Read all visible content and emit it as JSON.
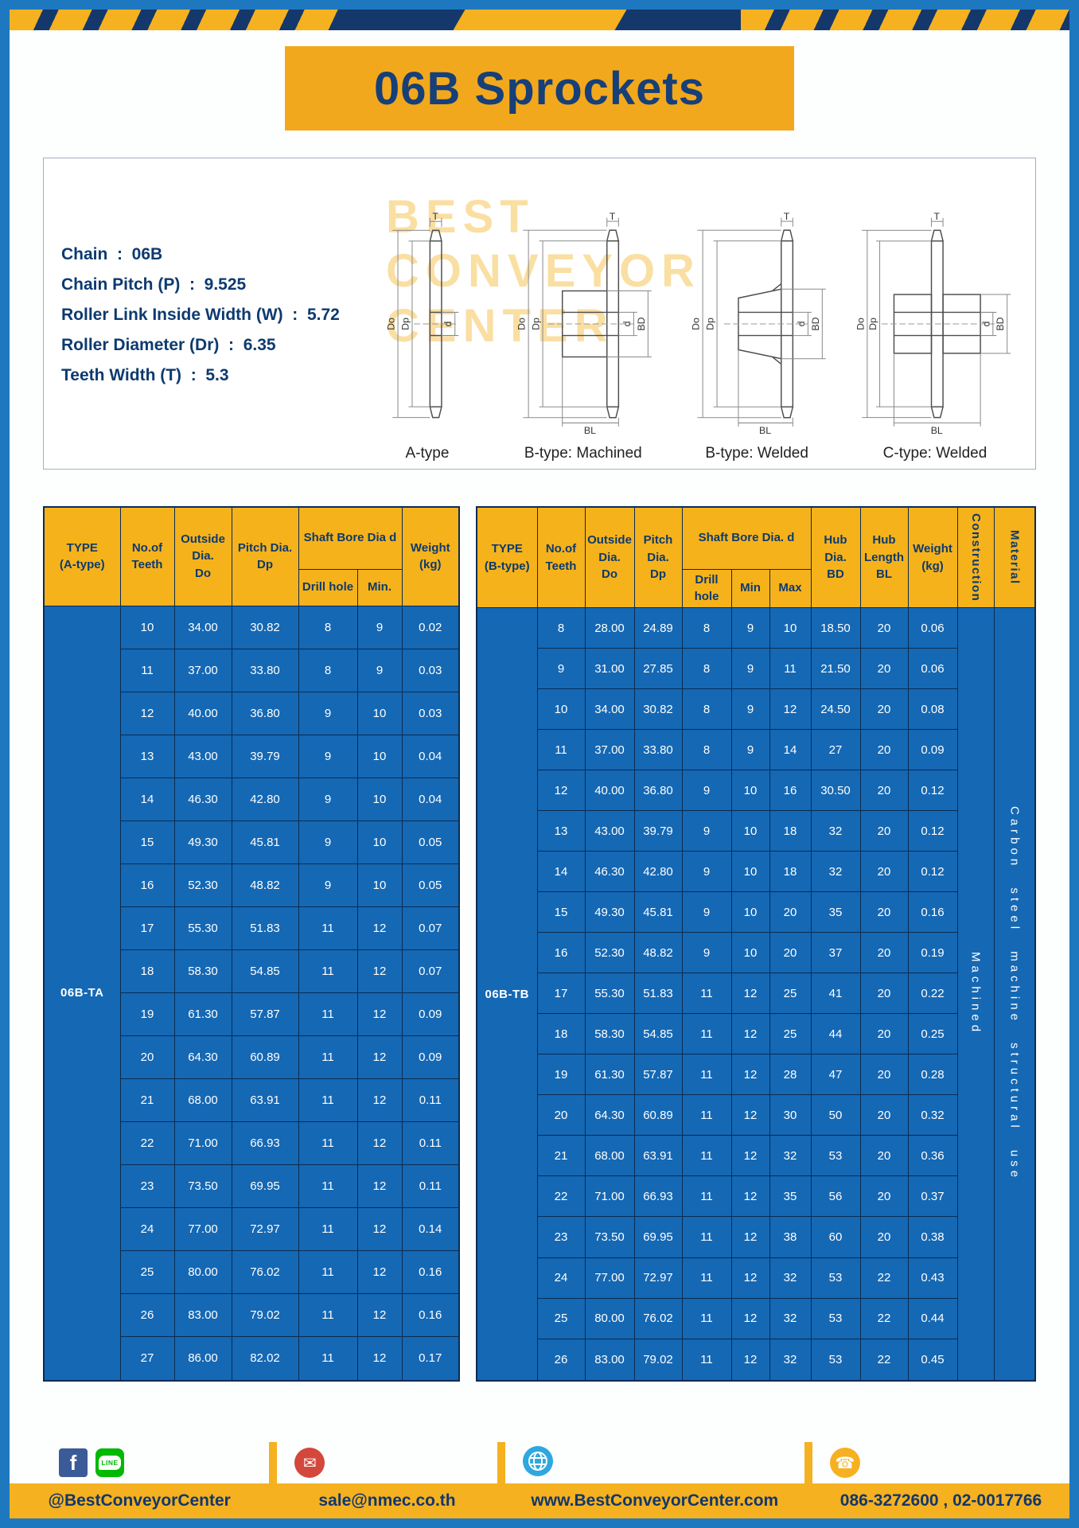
{
  "title": "06B Sprockets",
  "colors": {
    "frame_blue": "#1e78bf",
    "accent_yellow": "#f5b120",
    "banner_orange": "#f2a81d",
    "navy_text": "#0d3a70",
    "table_body_blue": "#1568b4",
    "table_border": "#0a2c52"
  },
  "specs": {
    "lines": [
      "Chain  :  06B",
      "Chain Pitch (P)  :  9.525",
      "Roller Link Inside Width (W)  :  5.72",
      "Roller Diameter (Dr)  :  6.35",
      "Teeth Width (T)  :  5.3"
    ]
  },
  "diagrams": {
    "labels": [
      "A-type",
      "B-type: Machined",
      "B-type: Welded",
      "C-type: Welded"
    ],
    "dims": {
      "do": "Do",
      "dp": "Dp",
      "d": "d",
      "bd": "BD",
      "t": "T",
      "bl": "BL"
    },
    "watermark": [
      "BEST",
      "CONVEYOR",
      "CENTER"
    ]
  },
  "table_a": {
    "title_col": "TYPE\n(A-type)",
    "headers": {
      "teeth": "No.of\nTeeth",
      "outside": "Outside\nDia.\nDo",
      "pitch": "Pitch Dia.\nDp",
      "shaft_bore": "Shaft Bore Dia d",
      "drill": "Drill hole",
      "min": "Min.",
      "weight": "Weight\n(kg)"
    },
    "type_label": "06B-TA",
    "rows": [
      [
        "10",
        "34.00",
        "30.82",
        "8",
        "9",
        "0.02"
      ],
      [
        "11",
        "37.00",
        "33.80",
        "8",
        "9",
        "0.03"
      ],
      [
        "12",
        "40.00",
        "36.80",
        "9",
        "10",
        "0.03"
      ],
      [
        "13",
        "43.00",
        "39.79",
        "9",
        "10",
        "0.04"
      ],
      [
        "14",
        "46.30",
        "42.80",
        "9",
        "10",
        "0.04"
      ],
      [
        "15",
        "49.30",
        "45.81",
        "9",
        "10",
        "0.05"
      ],
      [
        "16",
        "52.30",
        "48.82",
        "9",
        "10",
        "0.05"
      ],
      [
        "17",
        "55.30",
        "51.83",
        "11",
        "12",
        "0.07"
      ],
      [
        "18",
        "58.30",
        "54.85",
        "11",
        "12",
        "0.07"
      ],
      [
        "19",
        "61.30",
        "57.87",
        "11",
        "12",
        "0.09"
      ],
      [
        "20",
        "64.30",
        "60.89",
        "11",
        "12",
        "0.09"
      ],
      [
        "21",
        "68.00",
        "63.91",
        "11",
        "12",
        "0.11"
      ],
      [
        "22",
        "71.00",
        "66.93",
        "11",
        "12",
        "0.11"
      ],
      [
        "23",
        "73.50",
        "69.95",
        "11",
        "12",
        "0.11"
      ],
      [
        "24",
        "77.00",
        "72.97",
        "11",
        "12",
        "0.14"
      ],
      [
        "25",
        "80.00",
        "76.02",
        "11",
        "12",
        "0.16"
      ],
      [
        "26",
        "83.00",
        "79.02",
        "11",
        "12",
        "0.16"
      ],
      [
        "27",
        "86.00",
        "82.02",
        "11",
        "12",
        "0.17"
      ]
    ]
  },
  "table_b": {
    "title_col": "TYPE\n(B-type)",
    "headers": {
      "teeth": "No.of\nTeeth",
      "outside": "Outside\nDia.\nDo",
      "pitch": "Pitch\nDia.\nDp",
      "shaft_bore": "Shaft Bore Dia.  d",
      "drill": "Drill hole",
      "min": "Min",
      "max": "Max",
      "hub_dia": "Hub\nDia.\nBD",
      "hub_len": "Hub\nLength\nBL",
      "weight": "Weight\n(kg)",
      "construction": "Construction",
      "material": "Material"
    },
    "type_label": "06B-TB",
    "construction_value": "Machined",
    "material_value": "Carbon steel machine structural use",
    "rows": [
      [
        "8",
        "28.00",
        "24.89",
        "8",
        "9",
        "10",
        "18.50",
        "20",
        "0.06"
      ],
      [
        "9",
        "31.00",
        "27.85",
        "8",
        "9",
        "11",
        "21.50",
        "20",
        "0.06"
      ],
      [
        "10",
        "34.00",
        "30.82",
        "8",
        "9",
        "12",
        "24.50",
        "20",
        "0.08"
      ],
      [
        "11",
        "37.00",
        "33.80",
        "8",
        "9",
        "14",
        "27",
        "20",
        "0.09"
      ],
      [
        "12",
        "40.00",
        "36.80",
        "9",
        "10",
        "16",
        "30.50",
        "20",
        "0.12"
      ],
      [
        "13",
        "43.00",
        "39.79",
        "9",
        "10",
        "18",
        "32",
        "20",
        "0.12"
      ],
      [
        "14",
        "46.30",
        "42.80",
        "9",
        "10",
        "18",
        "32",
        "20",
        "0.12"
      ],
      [
        "15",
        "49.30",
        "45.81",
        "9",
        "10",
        "20",
        "35",
        "20",
        "0.16"
      ],
      [
        "16",
        "52.30",
        "48.82",
        "9",
        "10",
        "20",
        "37",
        "20",
        "0.19"
      ],
      [
        "17",
        "55.30",
        "51.83",
        "11",
        "12",
        "25",
        "41",
        "20",
        "0.22"
      ],
      [
        "18",
        "58.30",
        "54.85",
        "11",
        "12",
        "25",
        "44",
        "20",
        "0.25"
      ],
      [
        "19",
        "61.30",
        "57.87",
        "11",
        "12",
        "28",
        "47",
        "20",
        "0.28"
      ],
      [
        "20",
        "64.30",
        "60.89",
        "11",
        "12",
        "30",
        "50",
        "20",
        "0.32"
      ],
      [
        "21",
        "68.00",
        "63.91",
        "11",
        "12",
        "32",
        "53",
        "20",
        "0.36"
      ],
      [
        "22",
        "71.00",
        "66.93",
        "11",
        "12",
        "35",
        "56",
        "20",
        "0.37"
      ],
      [
        "23",
        "73.50",
        "69.95",
        "11",
        "12",
        "38",
        "60",
        "20",
        "0.38"
      ],
      [
        "24",
        "77.00",
        "72.97",
        "11",
        "12",
        "32",
        "53",
        "22",
        "0.43"
      ],
      [
        "25",
        "80.00",
        "76.02",
        "11",
        "12",
        "32",
        "53",
        "22",
        "0.44"
      ],
      [
        "26",
        "83.00",
        "79.02",
        "11",
        "12",
        "32",
        "53",
        "22",
        "0.45"
      ]
    ]
  },
  "footer": {
    "line_label": "LINE",
    "items": [
      {
        "icon": "facebook-line",
        "text": "@BestConveyorCenter"
      },
      {
        "icon": "email",
        "text": "sale@nmec.co.th"
      },
      {
        "icon": "globe",
        "text": "www.BestConveyorCenter.com"
      },
      {
        "icon": "phone",
        "text": "086-3272600 , 02-0017766"
      }
    ]
  }
}
